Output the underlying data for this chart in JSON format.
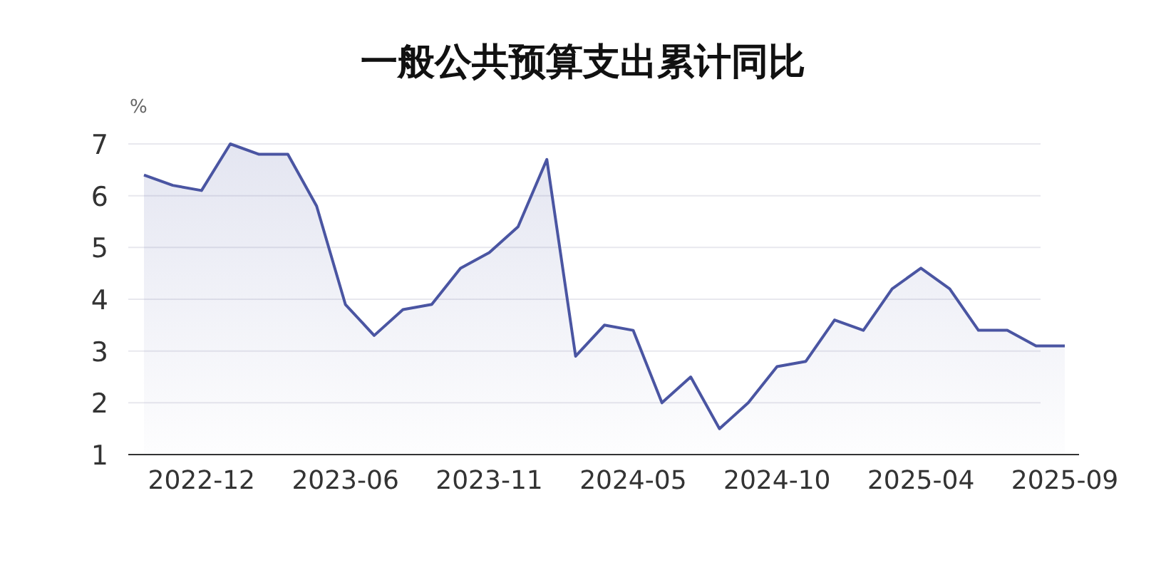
{
  "chart_data": {
    "type": "area",
    "title": "一般公共预算支出累计同比",
    "ylabel": "%",
    "categories": [
      null,
      null,
      "2022-12",
      null,
      null,
      null,
      null,
      "2023-06",
      null,
      null,
      null,
      null,
      "2023-11",
      null,
      null,
      null,
      null,
      "2024-05",
      null,
      null,
      null,
      null,
      "2024-10",
      null,
      null,
      null,
      null,
      "2025-04",
      null,
      null,
      null,
      null,
      "2025-09"
    ],
    "series": [
      {
        "color": "#4a55a2",
        "values": [
          6.4,
          6.2,
          6.1,
          7.0,
          6.8,
          6.8,
          5.8,
          3.9,
          3.3,
          3.8,
          3.9,
          4.6,
          4.9,
          5.4,
          6.7,
          2.9,
          3.5,
          3.4,
          2.0,
          2.5,
          1.5,
          2.0,
          2.7,
          2.8,
          3.6,
          3.4,
          4.2,
          4.6,
          4.2,
          3.4,
          3.4,
          3.1,
          3.1
        ]
      }
    ],
    "ylim": [
      1,
      7
    ],
    "yticks": [
      1,
      2,
      3,
      4,
      5,
      6,
      7
    ],
    "grid": "y",
    "marker": "none",
    "line_style": "solid"
  }
}
